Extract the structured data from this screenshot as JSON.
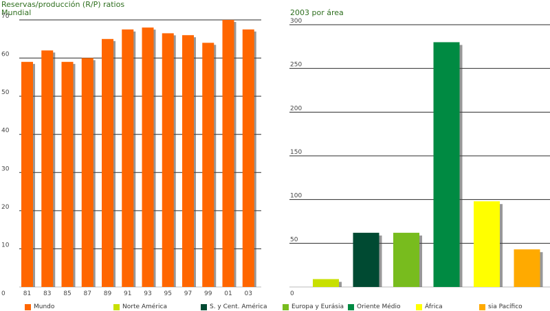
{
  "titles": {
    "left_title": "Reservas/producción (R/P) ratios",
    "left_subtitle": "Mundial",
    "right_title": "2003 por área"
  },
  "colors": {
    "mundo": "#ff6600",
    "norte_america": "#c8e000",
    "s_cent_america": "#004a32",
    "europa_eurasia": "#78bc1e",
    "oriente_medio": "#008a42",
    "africa": "#ffff00",
    "asia_pacifico": "#ffaa00",
    "title_text": "#2e6e1e",
    "bar_shadow": "#444444"
  },
  "legend": [
    {
      "label": "Mundo",
      "color": "#ff6600"
    },
    {
      "label": "Norte América",
      "color": "#c8e000"
    },
    {
      "label": "S. y Cent. América",
      "color": "#004a32"
    },
    {
      "label": "Europa y Eurásia",
      "color": "#78bc1e"
    },
    {
      "label": "Oriente Médio",
      "color": "#008a42"
    },
    {
      "label": "África",
      "color": "#ffff00"
    },
    {
      "label": "sia Pacífico",
      "color": "#ffaa00"
    }
  ],
  "chart_data": [
    {
      "type": "bar",
      "title": "Reservas/producción (R/P) ratios",
      "subtitle": "Mundial",
      "categories": [
        "81",
        "83",
        "85",
        "87",
        "89",
        "91",
        "93",
        "95",
        "97",
        "99",
        "01",
        "03"
      ],
      "values": [
        59,
        62,
        59,
        60,
        65,
        67.5,
        68,
        66.5,
        66,
        64,
        70,
        67.5
      ],
      "ylim": [
        0,
        70
      ],
      "yticks": [
        0,
        10,
        20,
        30,
        40,
        50,
        60,
        70
      ],
      "grid": true
    },
    {
      "type": "bar",
      "title": "2003 por área",
      "categories": [
        "Norte América",
        "S. y Cent. América",
        "Europa y Eurásia",
        "Oriente Médio",
        "África",
        "sia Pacífico"
      ],
      "values": [
        9,
        62,
        62,
        280,
        98,
        43
      ],
      "colors": [
        "#c8e000",
        "#004a32",
        "#78bc1e",
        "#008a42",
        "#ffff00",
        "#ffaa00"
      ],
      "ylim": [
        0,
        300
      ],
      "yticks": [
        0,
        50,
        100,
        150,
        200,
        250,
        300
      ],
      "grid": true
    }
  ]
}
